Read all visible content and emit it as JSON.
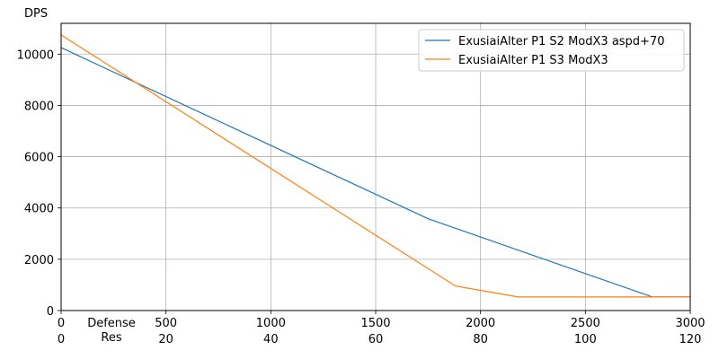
{
  "chart_data": {
    "type": "line",
    "ylabel": "DPS",
    "xlabel_primary": "Defense",
    "xlabel_secondary": "Res",
    "xlim": [
      0,
      3000
    ],
    "ylim": [
      0,
      11200
    ],
    "grid": true,
    "legend_position": "top-right",
    "xticks": [
      0,
      500,
      1000,
      1500,
      2000,
      2500,
      3000
    ],
    "xticks_secondary": [
      "0",
      "20",
      "40",
      "60",
      "80",
      "100",
      "120"
    ],
    "yticks": [
      0,
      2000,
      4000,
      6000,
      8000,
      10000
    ],
    "series": [
      {
        "name": "ExusiaiAlter P1 S2 ModX3 aspd+70",
        "color": "#1f77b4",
        "points": [
          [
            0,
            10250
          ],
          [
            1750,
            3580
          ],
          [
            2820,
            530
          ],
          [
            3000,
            530
          ]
        ]
      },
      {
        "name": "ExusiaiAlter P1 S3 ModX3",
        "color": "#ff7f0e",
        "points": [
          [
            0,
            10750
          ],
          [
            1880,
            960
          ],
          [
            2180,
            530
          ],
          [
            3000,
            530
          ]
        ]
      }
    ]
  }
}
